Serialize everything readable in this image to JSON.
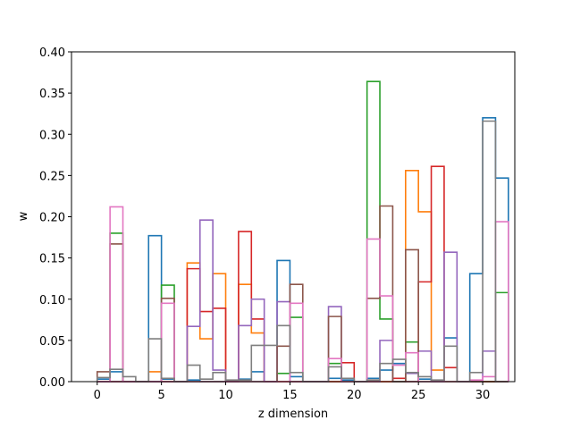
{
  "chart_data": {
    "type": "bar",
    "xlabel": "z dimension",
    "ylabel": "w",
    "xlim": [
      -2,
      32.5
    ],
    "ylim": [
      0,
      0.4
    ],
    "x_ticks": [
      0,
      5,
      10,
      15,
      20,
      25,
      30
    ],
    "y_ticks": [
      0.0,
      0.05,
      0.1,
      0.15,
      0.2,
      0.25,
      0.3,
      0.35,
      0.4
    ],
    "y_tick_labels": [
      "0.00",
      "0.05",
      "0.10",
      "0.15",
      "0.20",
      "0.25",
      "0.30",
      "0.35",
      "0.40"
    ],
    "histtype": "step",
    "grid": false,
    "series": [
      {
        "color": "#1f77b4",
        "values": [
          0.003,
          0.012,
          0.0,
          0.0,
          0.177,
          0.003,
          0.0,
          0.002,
          0.0,
          0.0,
          0.0,
          0.003,
          0.012,
          0.0,
          0.147,
          0.006,
          0.0,
          0.0,
          0.004,
          0.002,
          0.0,
          0.004,
          0.014,
          0.022,
          0.0,
          0.003,
          0.0,
          0.053,
          0.0,
          0.131,
          0.32,
          0.247
        ]
      },
      {
        "color": "#ff7f0e",
        "values": [
          0.0,
          0.0,
          0.0,
          0.0,
          0.012,
          0.0,
          0.0,
          0.144,
          0.052,
          0.131,
          0.0,
          0.118,
          0.059,
          0.0,
          0.0,
          0.0,
          0.0,
          0.0,
          0.0,
          0.0,
          0.0,
          0.0,
          0.0,
          0.0,
          0.256,
          0.206,
          0.014,
          0.0,
          0.0,
          0.0,
          0.0,
          0.0
        ]
      },
      {
        "color": "#2ca02c",
        "values": [
          0.0,
          0.18,
          0.0,
          0.0,
          0.0,
          0.117,
          0.0,
          0.0,
          0.0,
          0.0,
          0.0,
          0.0,
          0.0,
          0.0,
          0.01,
          0.078,
          0.0,
          0.0,
          0.022,
          0.0,
          0.0,
          0.364,
          0.076,
          0.0,
          0.048,
          0.0,
          0.0,
          0.0,
          0.0,
          0.0,
          0.0,
          0.108
        ]
      },
      {
        "color": "#d62728",
        "values": [
          0.0,
          0.0,
          0.0,
          0.0,
          0.0,
          0.0,
          0.0,
          0.137,
          0.085,
          0.089,
          0.0,
          0.182,
          0.076,
          0.0,
          0.0,
          0.0,
          0.0,
          0.0,
          0.0,
          0.023,
          0.0,
          0.0,
          0.0,
          0.004,
          0.0,
          0.121,
          0.261,
          0.017,
          0.0,
          0.0,
          0.0,
          0.0
        ]
      },
      {
        "color": "#9467bd",
        "values": [
          0.0,
          0.0,
          0.0,
          0.0,
          0.0,
          0.0,
          0.0,
          0.067,
          0.196,
          0.014,
          0.0,
          0.068,
          0.1,
          0.0,
          0.097,
          0.0,
          0.0,
          0.0,
          0.091,
          0.0,
          0.0,
          0.0,
          0.05,
          0.0,
          0.01,
          0.037,
          0.0,
          0.157,
          0.0,
          0.0,
          0.037,
          0.0
        ]
      },
      {
        "color": "#8c564b",
        "values": [
          0.012,
          0.167,
          0.0,
          0.0,
          0.0,
          0.101,
          0.0,
          0.0,
          0.0,
          0.0,
          0.0,
          0.0,
          0.0,
          0.0,
          0.043,
          0.118,
          0.0,
          0.0,
          0.079,
          0.0,
          0.0,
          0.101,
          0.213,
          0.0,
          0.16,
          0.0,
          0.0,
          0.0,
          0.0,
          0.0,
          0.0,
          0.0
        ]
      },
      {
        "color": "#e377c2",
        "values": [
          0.0,
          0.212,
          0.0,
          0.0,
          0.0,
          0.095,
          0.0,
          0.0,
          0.0,
          0.0,
          0.0,
          0.0,
          0.0,
          0.0,
          0.0,
          0.095,
          0.0,
          0.0,
          0.028,
          0.0,
          0.0,
          0.173,
          0.104,
          0.02,
          0.035,
          0.0,
          0.0,
          0.0,
          0.0,
          0.002,
          0.006,
          0.194
        ]
      },
      {
        "color": "#7f7f7f",
        "values": [
          0.005,
          0.015,
          0.006,
          0.0,
          0.052,
          0.004,
          0.0,
          0.02,
          0.003,
          0.011,
          0.002,
          0.002,
          0.044,
          0.044,
          0.068,
          0.011,
          0.0,
          0.0,
          0.018,
          0.004,
          0.0,
          0.002,
          0.022,
          0.027,
          0.011,
          0.006,
          0.002,
          0.043,
          0.0,
          0.011,
          0.316,
          0.0
        ]
      }
    ]
  }
}
